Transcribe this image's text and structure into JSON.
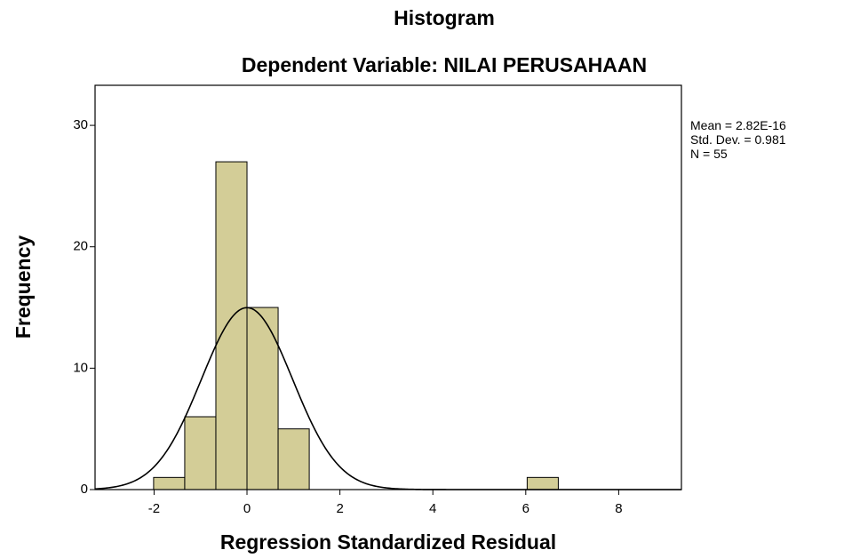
{
  "chart_data": {
    "type": "histogram",
    "title": "Histogram",
    "subtitle": "Dependent Variable: NILAI PERUSAHAAN",
    "x_label": "Regression Standardized Residual",
    "y_label": "Frequency",
    "bins": [
      -2.01,
      -1.34,
      -0.67,
      0,
      0.67,
      1.34,
      2.01,
      2.68,
      3.35,
      4.02,
      4.69,
      5.36,
      6.03,
      6.7
    ],
    "counts": [
      1,
      6,
      27,
      15,
      5,
      0,
      0,
      0,
      0,
      0,
      0,
      0,
      1
    ],
    "color": "#d3cd97",
    "xlim": [
      -3.27,
      9.35
    ],
    "ylim": [
      0,
      33.3
    ],
    "xticks": [
      -2,
      0,
      2,
      4,
      6,
      8
    ],
    "yticks": [
      0,
      10,
      20,
      30
    ],
    "normal_curve": true,
    "stats": {
      "mean": {
        "value": 2.82e-16,
        "label": "Mean = 2.82E-16"
      },
      "std_dev": {
        "value": 0.981,
        "label": "Std. Dev. = 0.981"
      },
      "n": {
        "value": 55,
        "label": "N = 55"
      }
    }
  }
}
